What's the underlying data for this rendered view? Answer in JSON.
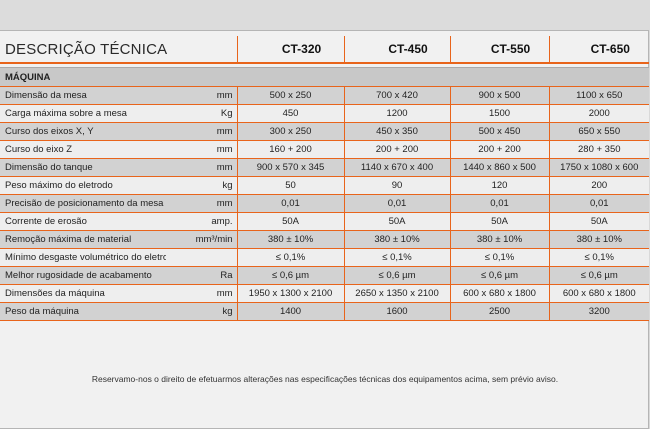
{
  "table": {
    "title": "DESCRIÇÃO TÉCNICA",
    "models": [
      "CT-320",
      "CT-450",
      "CT-550",
      "CT-650"
    ],
    "section": "MÁQUINA",
    "rows": [
      {
        "label": "Dimensão da mesa",
        "unit": "mm",
        "values": [
          "500 x 250",
          "700 x 420",
          "900 x 500",
          "1100 x 650"
        ]
      },
      {
        "label": "Carga máxima sobre a mesa",
        "unit": "Kg",
        "values": [
          "450",
          "1200",
          "1500",
          "2000"
        ]
      },
      {
        "label": "Curso dos eixos X, Y",
        "unit": "mm",
        "values": [
          "300 x 250",
          "450 x 350",
          "500 x 450",
          "650 x 550"
        ]
      },
      {
        "label": "Curso do eixo Z",
        "unit": "mm",
        "values": [
          "160 + 200",
          "200 + 200",
          "200 + 200",
          "280 + 350"
        ]
      },
      {
        "label": "Dimensão do tanque",
        "unit": "mm",
        "values": [
          "900 x 570 x 345",
          "1140 x 670 x 400",
          "1440 x 860 x 500",
          "1750 x 1080 x 600"
        ]
      },
      {
        "label": "Peso máximo do eletrodo",
        "unit": "kg",
        "values": [
          "50",
          "90",
          "120",
          "200"
        ]
      },
      {
        "label": "Precisão de posicionamento da mesa",
        "unit": "mm",
        "values": [
          "0,01",
          "0,01",
          "0,01",
          "0,01"
        ]
      },
      {
        "label": "Corrente de erosão",
        "unit": "amp.",
        "values": [
          "50A",
          "50A",
          "50A",
          "50A"
        ]
      },
      {
        "label": "Remoção máxima de material",
        "unit": "mm³/min",
        "values": [
          "380 ± 10%",
          "380 ± 10%",
          "380 ± 10%",
          "380 ± 10%"
        ]
      },
      {
        "label": "Mínimo desgaste volumétrico do eletrodo",
        "unit": "",
        "values": [
          "≤ 0,1%",
          "≤ 0,1%",
          "≤ 0,1%",
          "≤ 0,1%"
        ]
      },
      {
        "label": "Melhor rugosidade de acabamento",
        "unit": "Ra",
        "values": [
          "≤ 0,6 µm",
          "≤ 0,6 µm",
          "≤ 0,6 µm",
          "≤ 0,6 µm"
        ]
      },
      {
        "label": "Dimensões da máquina",
        "unit": "mm",
        "values": [
          "1950 x 1300 x 2100",
          "2650 x 1350 x 2100",
          "600 x 680 x 1800",
          "600 x 680 x 1800"
        ]
      },
      {
        "label": "Peso da máquina",
        "unit": "kg",
        "values": [
          "1400",
          "1600",
          "2500",
          "3200"
        ]
      }
    ]
  },
  "footer_note": "Reservamo-nos o direito de efetuarmos alterações nas especificações técnicas dos equipamentos acima, sem prévio aviso.",
  "colors": {
    "accent": "#e8641b",
    "row_alt": "#d2d2d2",
    "row_plain": "#eeeeee",
    "section_bg": "#c8c8c8"
  }
}
